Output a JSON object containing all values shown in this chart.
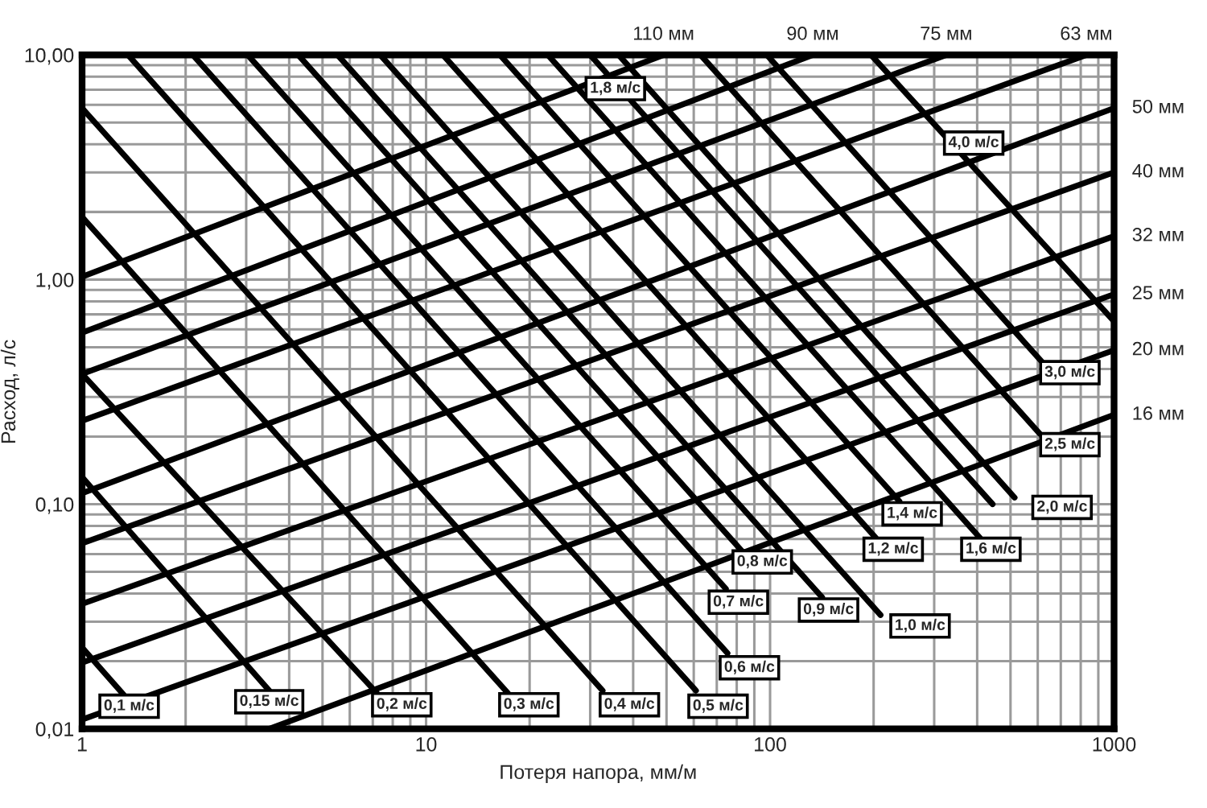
{
  "chart_data": {
    "type": "line",
    "xlabel": "Потеря напора, мм/м",
    "ylabel": "Расход, л/с",
    "log": "xy",
    "grid": true,
    "marker": "none",
    "line_style": "solid",
    "xlim": [
      1,
      1000
    ],
    "ylim": [
      0.01,
      10
    ],
    "xticks": [
      1,
      10,
      100,
      1000
    ],
    "yticks": [
      {
        "value": 0.01,
        "label": "0,01"
      },
      {
        "value": 0.1,
        "label": "0,10"
      },
      {
        "value": 1,
        "label": "1,00"
      },
      {
        "value": 10,
        "label": "10,00"
      }
    ],
    "series": [
      {
        "name": "110 мм",
        "color": "#000000",
        "x": [
          1,
          49
        ],
        "values": [
          1.03,
          10
        ]
      },
      {
        "name": "90 мм",
        "color": "#000000",
        "x": [
          1,
          133
        ],
        "values": [
          0.58,
          10
        ]
      },
      {
        "name": "75 мм",
        "color": "#000000",
        "x": [
          1,
          325
        ],
        "values": [
          0.38,
          10
        ]
      },
      {
        "name": "63 мм",
        "color": "#000000",
        "x": [
          1,
          830
        ],
        "values": [
          0.235,
          10
        ]
      },
      {
        "name": "50 мм",
        "color": "#000000",
        "x": [
          1,
          1000
        ],
        "values": [
          0.112,
          5.8
        ]
      },
      {
        "name": "40 мм",
        "color": "#000000",
        "x": [
          1,
          1000
        ],
        "values": [
          0.067,
          3.0
        ]
      },
      {
        "name": "32 мм",
        "color": "#000000",
        "x": [
          1,
          1000
        ],
        "values": [
          0.036,
          1.56
        ]
      },
      {
        "name": "25 мм",
        "color": "#000000",
        "x": [
          1,
          1000
        ],
        "values": [
          0.0197,
          0.86
        ]
      },
      {
        "name": "20 мм",
        "color": "#000000",
        "x": [
          1,
          1000
        ],
        "values": [
          0.011,
          0.485
        ]
      },
      {
        "name": "16 мм",
        "color": "#000000",
        "x": [
          3.5,
          1000
        ],
        "values": [
          0.01,
          0.25
        ]
      },
      {
        "color": "#000000",
        "x": [
          1,
          1.32
        ],
        "values": [
          0.023,
          0.0142
        ]
      },
      {
        "color": "#000000",
        "x": [
          1,
          3.5
        ],
        "values": [
          0.132,
          0.0148
        ]
      },
      {
        "color": "#000000",
        "x": [
          1,
          7.2
        ],
        "values": [
          0.38,
          0.0144
        ]
      },
      {
        "color": "#000000",
        "x": [
          1,
          17.3
        ],
        "values": [
          1.9,
          0.0144
        ]
      },
      {
        "color": "#000000",
        "x": [
          1,
          32.6
        ],
        "values": [
          5.8,
          0.0148
        ]
      },
      {
        "color": "#000000",
        "x": [
          1.36,
          60.9
        ],
        "values": [
          10,
          0.0148
        ]
      },
      {
        "color": "#000000",
        "x": [
          2.1,
          75.2
        ],
        "values": [
          10,
          0.0217
        ]
      },
      {
        "color": "#000000",
        "x": [
          3.03,
          74.4
        ],
        "values": [
          10,
          0.042
        ]
      },
      {
        "color": "#000000",
        "x": [
          4.25,
          82.7
        ],
        "values": [
          10,
          0.062
        ]
      },
      {
        "color": "#000000",
        "x": [
          5.53,
          141.7
        ],
        "values": [
          10,
          0.0385
        ]
      },
      {
        "color": "#000000",
        "x": [
          7.36,
          209.5
        ],
        "values": [
          10,
          0.0321
        ]
      },
      {
        "color": "#000000",
        "x": [
          11.2,
          203
        ],
        "values": [
          10,
          0.0708
        ]
      },
      {
        "color": "#000000",
        "x": [
          16.4,
          237.7
        ],
        "values": [
          10,
          0.103
        ]
      },
      {
        "color": "#000000",
        "x": [
          22.6,
          407.6
        ],
        "values": [
          10,
          0.0708
        ]
      },
      {
        "color": "#000000",
        "x": [
          30,
          443.6
        ],
        "values": [
          10,
          0.1
        ]
      },
      {
        "color": "#000000",
        "x": [
          36.3,
          514
        ],
        "values": [
          10,
          0.107
        ]
      },
      {
        "color": "#000000",
        "x": [
          62.8,
          608
        ],
        "values": [
          10,
          0.206
        ]
      },
      {
        "color": "#000000",
        "x": [
          97.9,
          615
        ],
        "values": [
          10,
          0.433
        ]
      },
      {
        "color": "#000000",
        "x": [
          196.6,
          1000
        ],
        "values": [
          10,
          0.652
        ]
      }
    ],
    "annotations": [
      {
        "text": "0,1 м/с",
        "x": 1.37,
        "y": 0.0126
      },
      {
        "text": "0,15 м/с",
        "x": 3.5,
        "y": 0.0132
      },
      {
        "text": "0,2 м/с",
        "x": 8.5,
        "y": 0.0128
      },
      {
        "text": "0,3 м/с",
        "x": 19.9,
        "y": 0.0128
      },
      {
        "text": "0,4 м/с",
        "x": 39,
        "y": 0.0128
      },
      {
        "text": "0,5 м/с",
        "x": 70.6,
        "y": 0.0126
      },
      {
        "text": "0,6 м/с",
        "x": 87.1,
        "y": 0.0187
      },
      {
        "text": "0,7 м/с",
        "x": 80.9,
        "y": 0.0366
      },
      {
        "text": "0,8 м/с",
        "x": 94.9,
        "y": 0.0553
      },
      {
        "text": "0,9 м/с",
        "x": 147.9,
        "y": 0.0338
      },
      {
        "text": "1,0 м/с",
        "x": 272.9,
        "y": 0.0287
      },
      {
        "text": "1,2 м/с",
        "x": 228,
        "y": 0.063
      },
      {
        "text": "1,4 м/с",
        "x": 258.8,
        "y": 0.0906
      },
      {
        "text": "1,6 м/с",
        "x": 438.5,
        "y": 0.063
      },
      {
        "text": "1,8 м/с",
        "x": 35.5,
        "y": 7.08
      },
      {
        "text": "2,0 м/с",
        "x": 706,
        "y": 0.0968
      },
      {
        "text": "2,5 м/с",
        "x": 744,
        "y": 0.184
      },
      {
        "text": "3,0 м/с",
        "x": 744,
        "y": 0.385
      },
      {
        "text": "4,0 м/с",
        "x": 390.8,
        "y": 4.05
      }
    ]
  }
}
